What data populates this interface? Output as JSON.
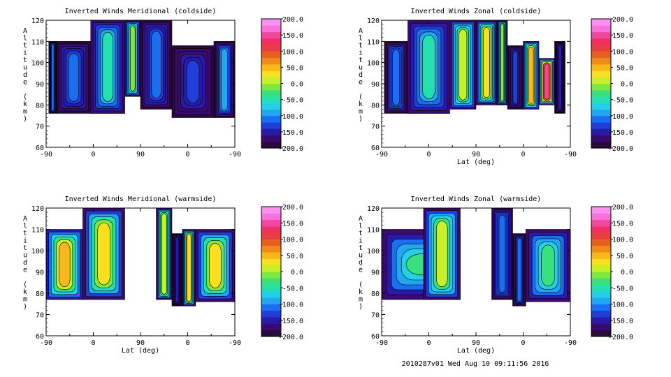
{
  "footer": {
    "text": "2010287v01 Wed Aug 10 09:11:56 2016"
  },
  "colors": {
    "colorbar": [
      "#2a0a3c",
      "#3b0a6e",
      "#2a1aa8",
      "#1f3fd8",
      "#1a6ef0",
      "#22a6f2",
      "#23d0e8",
      "#24e0b0",
      "#3ae080",
      "#7ee840",
      "#c8f02a",
      "#f8e020",
      "#f8b818",
      "#f08a18",
      "#e86020",
      "#e84040",
      "#f03060",
      "#f048a0",
      "#f870d8",
      "#f890f0"
    ],
    "contour_line": "#000000",
    "background": "#ffffff"
  },
  "colorbar": {
    "tick_labels": [
      "200.0",
      "150.0",
      "100.0",
      "50.0",
      "0.0",
      "-50.0",
      "-100.0",
      "-150.0",
      "-200.0"
    ],
    "range": [
      -200,
      200
    ]
  },
  "chart_data": [
    {
      "type": "heatmap",
      "title": "Inverted Winds Meridional (coldside)",
      "xlabel": "",
      "ylabel": "Altitude (km)",
      "x_tick_labels": [
        "-90",
        "0",
        "90",
        "0",
        "-90"
      ],
      "y_tick_labels": [
        "60",
        "70",
        "80",
        "90",
        "100",
        "110",
        "120"
      ],
      "ylim": [
        60,
        120
      ],
      "colorbar_range": [
        -200,
        200
      ],
      "regions": [
        {
          "lat_range": [
            -85,
            -70
          ],
          "alt_range": [
            76,
            110
          ],
          "typical_value": -110
        },
        {
          "lat_range": [
            -70,
            -5
          ],
          "alt_range": [
            76,
            110
          ],
          "typical_value": -120
        },
        {
          "lat_range": [
            -5,
            60
          ],
          "alt_range": [
            76,
            120
          ],
          "typical_value": -60
        },
        {
          "lat_range": [
            60,
            90
          ],
          "alt_range": [
            84,
            120
          ],
          "typical_value": -10
        },
        {
          "lat_range": [
            90,
            150
          ],
          "alt_range": [
            78,
            120
          ],
          "typical_value": -120
        },
        {
          "lat_range": [
            150,
            230
          ],
          "alt_range": [
            74,
            108
          ],
          "typical_value": -130
        },
        {
          "lat_range": [
            230,
            270
          ],
          "alt_range": [
            74,
            110
          ],
          "typical_value": -100
        }
      ]
    },
    {
      "type": "heatmap",
      "title": "Inverted Winds Zonal (coldside)",
      "xlabel": "Lat (deg)",
      "ylabel": "Altitude (km)",
      "x_tick_labels": [
        "-90",
        "0",
        "90",
        "0",
        "-90"
      ],
      "y_tick_labels": [
        "60",
        "70",
        "80",
        "90",
        "100",
        "110",
        "120"
      ],
      "ylim": [
        60,
        120
      ],
      "colorbar_range": [
        -200,
        200
      ],
      "regions": [
        {
          "lat_range": [
            -85,
            -40
          ],
          "alt_range": [
            76,
            110
          ],
          "typical_value": -110
        },
        {
          "lat_range": [
            -40,
            40
          ],
          "alt_range": [
            76,
            120
          ],
          "typical_value": -60
        },
        {
          "lat_range": [
            40,
            90
          ],
          "alt_range": [
            78,
            120
          ],
          "typical_value": 0
        },
        {
          "lat_range": [
            90,
            130
          ],
          "alt_range": [
            80,
            120
          ],
          "typical_value": 30
        },
        {
          "lat_range": [
            130,
            150
          ],
          "alt_range": [
            80,
            120
          ],
          "typical_value": -20
        },
        {
          "lat_range": [
            150,
            180
          ],
          "alt_range": [
            78,
            108
          ],
          "typical_value": -130
        },
        {
          "lat_range": [
            180,
            210
          ],
          "alt_range": [
            78,
            110
          ],
          "typical_value": 40
        },
        {
          "lat_range": [
            210,
            240
          ],
          "alt_range": [
            80,
            102
          ],
          "typical_value": 150
        },
        {
          "lat_range": [
            240,
            260
          ],
          "alt_range": [
            76,
            110
          ],
          "typical_value": -150
        }
      ]
    },
    {
      "type": "heatmap",
      "title": "Inverted Winds Meridional (warmside)",
      "xlabel": "Lat (deg)",
      "ylabel": "Altitude (km)",
      "x_tick_labels": [
        "-90",
        "0",
        "90",
        "0",
        "-90"
      ],
      "y_tick_labels": [
        "60",
        "70",
        "80",
        "90",
        "100",
        "110",
        "120"
      ],
      "ylim": [
        60,
        120
      ],
      "colorbar_range": [
        -200,
        200
      ],
      "regions": [
        {
          "lat_range": [
            -90,
            -20
          ],
          "alt_range": [
            77,
            110
          ],
          "typical_value": 40
        },
        {
          "lat_range": [
            -20,
            60
          ],
          "alt_range": [
            77,
            120
          ],
          "typical_value": 20
        },
        {
          "lat_range": [
            120,
            150
          ],
          "alt_range": [
            77,
            120
          ],
          "typical_value": 10
        },
        {
          "lat_range": [
            150,
            170
          ],
          "alt_range": [
            74,
            108
          ],
          "typical_value": -150
        },
        {
          "lat_range": [
            170,
            195
          ],
          "alt_range": [
            74,
            110
          ],
          "typical_value": 30
        },
        {
          "lat_range": [
            195,
            270
          ],
          "alt_range": [
            76,
            110
          ],
          "typical_value": 20
        }
      ]
    },
    {
      "type": "heatmap",
      "title": "Inverted Winds Zonal (warmside)",
      "xlabel": "Lat (deg)",
      "ylabel": "Altitude (km)",
      "x_tick_labels": [
        "-90",
        "0",
        "90",
        "0",
        "-90"
      ],
      "y_tick_labels": [
        "60",
        "70",
        "80",
        "90",
        "100",
        "110",
        "120"
      ],
      "ylim": [
        60,
        120
      ],
      "colorbar_range": [
        -200,
        200
      ],
      "regions": [
        {
          "lat_range": [
            -90,
            60
          ],
          "alt_range": [
            77,
            110
          ],
          "typical_value": -40
        },
        {
          "lat_range": [
            -10,
            60
          ],
          "alt_range": [
            77,
            120
          ],
          "typical_value": 0
        },
        {
          "lat_range": [
            120,
            160
          ],
          "alt_range": [
            77,
            120
          ],
          "typical_value": -110
        },
        {
          "lat_range": [
            160,
            185
          ],
          "alt_range": [
            74,
            108
          ],
          "typical_value": -120
        },
        {
          "lat_range": [
            185,
            270
          ],
          "alt_range": [
            76,
            110
          ],
          "typical_value": -40
        }
      ]
    }
  ]
}
